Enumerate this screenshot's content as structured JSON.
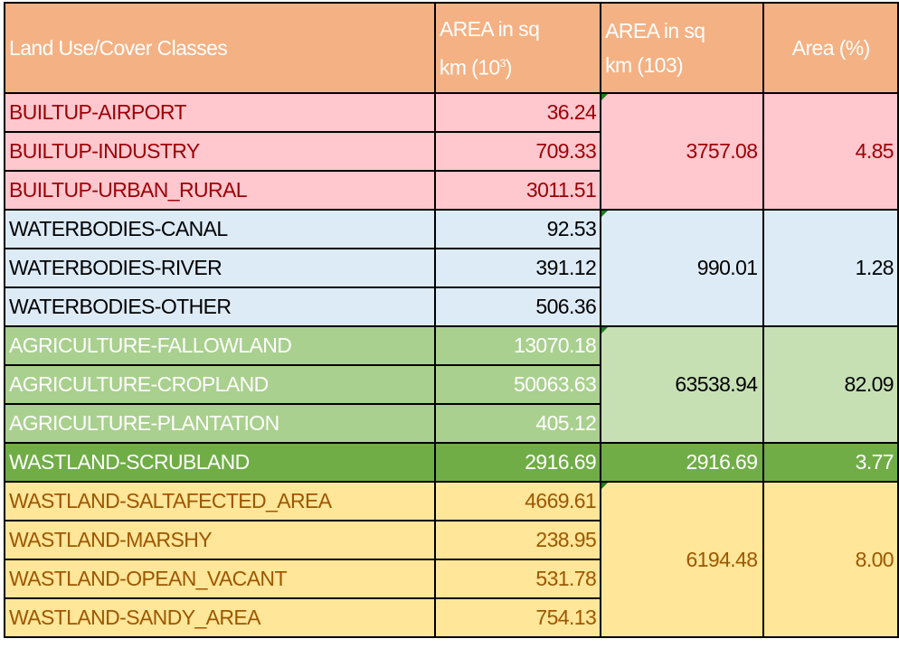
{
  "header": {
    "class_label": "Land Use/Cover Classes",
    "area1_line1": "AREA in sq",
    "area1_line2": "km (10",
    "area1_sup": "3",
    "area1_close": ")",
    "area2_line1": "AREA in sq",
    "area2_line2": "km (103)",
    "percent_label": "Area (%)"
  },
  "colors": {
    "header_bg": "#F4B183",
    "builtup_bg": "#FFC7CE",
    "builtup_text": "#9C0006",
    "water_bg": "#DDEBF7",
    "water_text": "#000000",
    "agri_bg": "#A9D08E",
    "agri_merged_bg": "#C6E0B4",
    "agri_text": "#FFFFFF",
    "scrub_bg": "#70AD47",
    "scrub_text": "#FFFFFF",
    "waste_bg": "#FFE699",
    "waste_text": "#9C5700"
  },
  "groups": [
    {
      "key": "builtup",
      "bg": "#FFC7CE",
      "mbg": "#FFC7CE",
      "color": "#9C0006",
      "mcolor": "#9C0006",
      "total": "3757.08",
      "percent": "4.85",
      "rows": [
        {
          "name": "BUILTUP-AIRPORT",
          "area": "36.24"
        },
        {
          "name": "BUILTUP-INDUSTRY",
          "area": "709.33"
        },
        {
          "name": "BUILTUP-URBAN_RURAL",
          "area": "3011.51"
        }
      ]
    },
    {
      "key": "waterbodies",
      "bg": "#DDEBF7",
      "mbg": "#DDEBF7",
      "color": "#000000",
      "mcolor": "#000000",
      "total": "990.01",
      "percent": "1.28",
      "rows": [
        {
          "name": "WATERBODIES-CANAL",
          "area": "92.53"
        },
        {
          "name": "WATERBODIES-RIVER",
          "area": "391.12"
        },
        {
          "name": "WATERBODIES-OTHER",
          "area": "506.36"
        }
      ]
    },
    {
      "key": "agriculture",
      "bg": "#A9D08E",
      "mbg": "#C6E0B4",
      "color": "#FFFFFF",
      "mcolor": "#000000",
      "total": "63538.94",
      "percent": "82.09",
      "rows": [
        {
          "name": "AGRICULTURE-FALLOWLAND",
          "area": "13070.18"
        },
        {
          "name": "AGRICULTURE-CROPLAND",
          "area": "50063.63"
        },
        {
          "name": "AGRICULTURE-PLANTATION",
          "area": "405.12"
        }
      ]
    },
    {
      "key": "scrubland",
      "bg": "#70AD47",
      "mbg": "#70AD47",
      "color": "#FFFFFF",
      "mcolor": "#FFFFFF",
      "total": "2916.69",
      "percent": "3.77",
      "noflag": true,
      "rows": [
        {
          "name": "WASTLAND-SCRUBLAND",
          "area": "2916.69"
        }
      ]
    },
    {
      "key": "wasteland",
      "bg": "#FFE699",
      "mbg": "#FFE699",
      "color": "#9C5700",
      "mcolor": "#9C5700",
      "total": "6194.48",
      "percent": "8.00",
      "rows": [
        {
          "name": "WASTLAND-SALTAFECTED_AREA",
          "area": "4669.61"
        },
        {
          "name": "WASTLAND-MARSHY",
          "area": "238.95"
        },
        {
          "name": "WASTLAND-OPEAN_VACANT",
          "area": "531.78"
        },
        {
          "name": "WASTLAND-SANDY_AREA",
          "area": "754.13"
        }
      ]
    }
  ]
}
